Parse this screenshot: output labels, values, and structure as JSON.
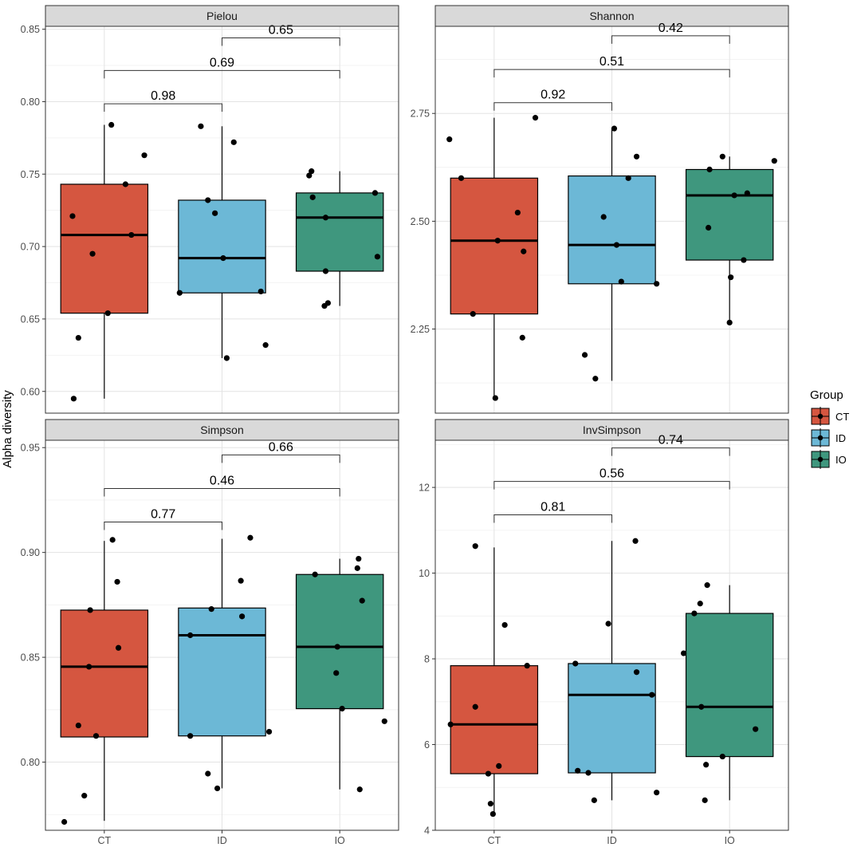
{
  "chart_data": {
    "type": "box",
    "ylabel": "Alpha diversity",
    "xlabel": "",
    "groups": [
      "CT",
      "ID",
      "IO"
    ],
    "colors": {
      "CT": "#d55640",
      "ID": "#6cb8d6",
      "IO": "#3f977e"
    },
    "legend": {
      "title": "Group",
      "position": "right",
      "entries": [
        "CT",
        "ID",
        "IO"
      ]
    },
    "panels": [
      {
        "title": "Pielou",
        "ylim": [
          0.585,
          0.852
        ],
        "yticks": [
          0.6,
          0.65,
          0.7,
          0.75,
          0.8,
          0.85
        ],
        "tick_labels": [
          "0.60",
          "0.65",
          "0.70",
          "0.75",
          "0.80",
          "0.85"
        ],
        "boxes": [
          {
            "group": "CT",
            "whisker_low": 0.595,
            "q1": 0.654,
            "median": 0.708,
            "q3": 0.743,
            "whisker_high": 0.784
          },
          {
            "group": "ID",
            "whisker_low": 0.623,
            "q1": 0.668,
            "median": 0.692,
            "q3": 0.732,
            "whisker_high": 0.783
          },
          {
            "group": "IO",
            "whisker_low": 0.659,
            "q1": 0.683,
            "median": 0.72,
            "q3": 0.737,
            "whisker_high": 0.752
          }
        ],
        "points": [
          {
            "group": "CT",
            "jitter": -0.26,
            "value": 0.595
          },
          {
            "group": "CT",
            "jitter": -0.22,
            "value": 0.637
          },
          {
            "group": "CT",
            "jitter": 0.03,
            "value": 0.654
          },
          {
            "group": "CT",
            "jitter": -0.1,
            "value": 0.695
          },
          {
            "group": "CT",
            "jitter": -0.27,
            "value": 0.721
          },
          {
            "group": "CT",
            "jitter": 0.18,
            "value": 0.743
          },
          {
            "group": "CT",
            "jitter": 0.23,
            "value": 0.708
          },
          {
            "group": "CT",
            "jitter": 0.34,
            "value": 0.763
          },
          {
            "group": "CT",
            "jitter": 0.06,
            "value": 0.784
          },
          {
            "group": "ID",
            "jitter": -0.18,
            "value": 0.783
          },
          {
            "group": "ID",
            "jitter": 0.1,
            "value": 0.772
          },
          {
            "group": "ID",
            "jitter": -0.12,
            "value": 0.732
          },
          {
            "group": "ID",
            "jitter": -0.06,
            "value": 0.723
          },
          {
            "group": "ID",
            "jitter": 0.01,
            "value": 0.692
          },
          {
            "group": "ID",
            "jitter": 0.33,
            "value": 0.669
          },
          {
            "group": "ID",
            "jitter": -0.36,
            "value": 0.668
          },
          {
            "group": "ID",
            "jitter": 0.37,
            "value": 0.632
          },
          {
            "group": "ID",
            "jitter": 0.04,
            "value": 0.623
          },
          {
            "group": "IO",
            "jitter": -0.26,
            "value": 0.749
          },
          {
            "group": "IO",
            "jitter": -0.24,
            "value": 0.752
          },
          {
            "group": "IO",
            "jitter": -0.23,
            "value": 0.734
          },
          {
            "group": "IO",
            "jitter": -0.12,
            "value": 0.72
          },
          {
            "group": "IO",
            "jitter": 0.3,
            "value": 0.737
          },
          {
            "group": "IO",
            "jitter": 0.32,
            "value": 0.693
          },
          {
            "group": "IO",
            "jitter": -0.12,
            "value": 0.683
          },
          {
            "group": "IO",
            "jitter": -0.1,
            "value": 0.661
          },
          {
            "group": "IO",
            "jitter": -0.13,
            "value": 0.659
          }
        ],
        "comparisons": [
          {
            "from": "CT",
            "to": "ID",
            "label": "0.98",
            "y": 0.7985
          },
          {
            "from": "CT",
            "to": "IO",
            "label": "0.69",
            "y": 0.8215
          },
          {
            "from": "ID",
            "to": "IO",
            "label": "0.65",
            "y": 0.844
          }
        ]
      },
      {
        "title": "Shannon",
        "ylim": [
          2.055,
          2.952
        ],
        "yticks": [
          2.25,
          2.5,
          2.75
        ],
        "tick_labels": [
          "2.25",
          "2.50",
          "2.75"
        ],
        "boxes": [
          {
            "group": "CT",
            "whisker_low": 2.09,
            "q1": 2.285,
            "median": 2.455,
            "q3": 2.6,
            "whisker_high": 2.74
          },
          {
            "group": "ID",
            "whisker_low": 2.13,
            "q1": 2.355,
            "median": 2.445,
            "q3": 2.605,
            "whisker_high": 2.715
          },
          {
            "group": "IO",
            "whisker_low": 2.27,
            "q1": 2.41,
            "median": 2.56,
            "q3": 2.62,
            "whisker_high": 2.65
          }
        ],
        "points": [
          {
            "group": "CT",
            "jitter": -0.38,
            "value": 2.69
          },
          {
            "group": "CT",
            "jitter": -0.28,
            "value": 2.6
          },
          {
            "group": "CT",
            "jitter": 0.35,
            "value": 2.74
          },
          {
            "group": "CT",
            "jitter": 0.2,
            "value": 2.52
          },
          {
            "group": "CT",
            "jitter": 0.03,
            "value": 2.455
          },
          {
            "group": "CT",
            "jitter": 0.25,
            "value": 2.43
          },
          {
            "group": "CT",
            "jitter": -0.18,
            "value": 2.285
          },
          {
            "group": "CT",
            "jitter": 0.24,
            "value": 2.23
          },
          {
            "group": "CT",
            "jitter": 0.01,
            "value": 2.09
          },
          {
            "group": "ID",
            "jitter": 0.02,
            "value": 2.715
          },
          {
            "group": "ID",
            "jitter": 0.21,
            "value": 2.65
          },
          {
            "group": "ID",
            "jitter": 0.14,
            "value": 2.6
          },
          {
            "group": "ID",
            "jitter": -0.07,
            "value": 2.51
          },
          {
            "group": "ID",
            "jitter": 0.04,
            "value": 2.445
          },
          {
            "group": "ID",
            "jitter": 0.08,
            "value": 2.36
          },
          {
            "group": "ID",
            "jitter": 0.38,
            "value": 2.355
          },
          {
            "group": "ID",
            "jitter": -0.23,
            "value": 2.19
          },
          {
            "group": "ID",
            "jitter": -0.14,
            "value": 2.135
          },
          {
            "group": "IO",
            "jitter": -0.18,
            "value": 2.485
          },
          {
            "group": "IO",
            "jitter": -0.17,
            "value": 2.62
          },
          {
            "group": "IO",
            "jitter": -0.06,
            "value": 2.65
          },
          {
            "group": "IO",
            "jitter": 0.04,
            "value": 2.56
          },
          {
            "group": "IO",
            "jitter": 0.15,
            "value": 2.565
          },
          {
            "group": "IO",
            "jitter": 0.38,
            "value": 2.64
          },
          {
            "group": "IO",
            "jitter": 0.12,
            "value": 2.41
          },
          {
            "group": "IO",
            "jitter": 0.01,
            "value": 2.37
          },
          {
            "group": "IO",
            "jitter": 0.0,
            "value": 2.265
          }
        ],
        "comparisons": [
          {
            "from": "CT",
            "to": "ID",
            "label": "0.92",
            "y": 2.775
          },
          {
            "from": "CT",
            "to": "IO",
            "label": "0.51",
            "y": 2.852
          },
          {
            "from": "ID",
            "to": "IO",
            "label": "0.42",
            "y": 2.93
          }
        ]
      },
      {
        "title": "Simpson",
        "ylim": [
          0.7675,
          0.9535
        ],
        "yticks": [
          0.8,
          0.85,
          0.9,
          0.95
        ],
        "tick_labels": [
          "0.80",
          "0.85",
          "0.90",
          "0.95"
        ],
        "boxes": [
          {
            "group": "CT",
            "whisker_low": 0.772,
            "q1": 0.812,
            "median": 0.8455,
            "q3": 0.8725,
            "whisker_high": 0.9055
          },
          {
            "group": "ID",
            "whisker_low": 0.7875,
            "q1": 0.8125,
            "median": 0.8605,
            "q3": 0.8735,
            "whisker_high": 0.9065
          },
          {
            "group": "IO",
            "whisker_low": 0.787,
            "q1": 0.8255,
            "median": 0.855,
            "q3": 0.8895,
            "whisker_high": 0.897
          }
        ],
        "points": [
          {
            "group": "CT",
            "jitter": 0.07,
            "value": 0.906
          },
          {
            "group": "CT",
            "jitter": 0.11,
            "value": 0.886
          },
          {
            "group": "CT",
            "jitter": -0.12,
            "value": 0.8725
          },
          {
            "group": "CT",
            "jitter": 0.12,
            "value": 0.8545
          },
          {
            "group": "CT",
            "jitter": -0.13,
            "value": 0.8455
          },
          {
            "group": "CT",
            "jitter": -0.22,
            "value": 0.8175
          },
          {
            "group": "CT",
            "jitter": -0.07,
            "value": 0.8125
          },
          {
            "group": "CT",
            "jitter": -0.17,
            "value": 0.784
          },
          {
            "group": "CT",
            "jitter": -0.34,
            "value": 0.7715
          },
          {
            "group": "ID",
            "jitter": 0.24,
            "value": 0.907
          },
          {
            "group": "ID",
            "jitter": 0.16,
            "value": 0.8865
          },
          {
            "group": "ID",
            "jitter": -0.09,
            "value": 0.873
          },
          {
            "group": "ID",
            "jitter": 0.17,
            "value": 0.8695
          },
          {
            "group": "ID",
            "jitter": -0.27,
            "value": 0.8605
          },
          {
            "group": "ID",
            "jitter": -0.27,
            "value": 0.8125
          },
          {
            "group": "ID",
            "jitter": 0.4,
            "value": 0.8145
          },
          {
            "group": "ID",
            "jitter": -0.12,
            "value": 0.7945
          },
          {
            "group": "ID",
            "jitter": -0.04,
            "value": 0.7875
          },
          {
            "group": "IO",
            "jitter": 0.16,
            "value": 0.897
          },
          {
            "group": "IO",
            "jitter": 0.15,
            "value": 0.8925
          },
          {
            "group": "IO",
            "jitter": -0.21,
            "value": 0.8895
          },
          {
            "group": "IO",
            "jitter": 0.19,
            "value": 0.877
          },
          {
            "group": "IO",
            "jitter": -0.02,
            "value": 0.855
          },
          {
            "group": "IO",
            "jitter": -0.03,
            "value": 0.8425
          },
          {
            "group": "IO",
            "jitter": 0.02,
            "value": 0.8255
          },
          {
            "group": "IO",
            "jitter": 0.38,
            "value": 0.8195
          },
          {
            "group": "IO",
            "jitter": 0.17,
            "value": 0.787
          }
        ],
        "comparisons": [
          {
            "from": "CT",
            "to": "ID",
            "label": "0.77",
            "y": 0.9145
          },
          {
            "from": "CT",
            "to": "IO",
            "label": "0.46",
            "y": 0.9305
          },
          {
            "from": "ID",
            "to": "IO",
            "label": "0.66",
            "y": 0.9465
          }
        ]
      },
      {
        "title": "InvSimpson",
        "ylim": [
          4.0,
          13.1
        ],
        "yticks": [
          4,
          6,
          8,
          10,
          12
        ],
        "tick_labels": [
          "4",
          "6",
          "8",
          "10",
          "12"
        ],
        "boxes": [
          {
            "group": "CT",
            "whisker_low": 4.4,
            "q1": 5.32,
            "median": 6.47,
            "q3": 7.84,
            "whisker_high": 10.6
          },
          {
            "group": "ID",
            "whisker_low": 4.7,
            "q1": 5.34,
            "median": 7.16,
            "q3": 7.89,
            "whisker_high": 10.75
          },
          {
            "group": "IO",
            "whisker_low": 4.7,
            "q1": 5.72,
            "median": 6.88,
            "q3": 9.06,
            "whisker_high": 9.72
          }
        ],
        "points": [
          {
            "group": "CT",
            "jitter": -0.16,
            "value": 10.63
          },
          {
            "group": "CT",
            "jitter": 0.09,
            "value": 8.79
          },
          {
            "group": "CT",
            "jitter": 0.28,
            "value": 7.84
          },
          {
            "group": "CT",
            "jitter": -0.16,
            "value": 6.88
          },
          {
            "group": "CT",
            "jitter": -0.37,
            "value": 6.47
          },
          {
            "group": "CT",
            "jitter": 0.04,
            "value": 5.5
          },
          {
            "group": "CT",
            "jitter": -0.05,
            "value": 5.32
          },
          {
            "group": "CT",
            "jitter": -0.03,
            "value": 4.62
          },
          {
            "group": "CT",
            "jitter": -0.01,
            "value": 4.38
          },
          {
            "group": "ID",
            "jitter": 0.2,
            "value": 10.75
          },
          {
            "group": "ID",
            "jitter": -0.03,
            "value": 8.82
          },
          {
            "group": "ID",
            "jitter": 0.21,
            "value": 7.69
          },
          {
            "group": "ID",
            "jitter": -0.31,
            "value": 7.89
          },
          {
            "group": "ID",
            "jitter": 0.34,
            "value": 7.16
          },
          {
            "group": "ID",
            "jitter": -0.29,
            "value": 5.39
          },
          {
            "group": "ID",
            "jitter": -0.2,
            "value": 5.34
          },
          {
            "group": "ID",
            "jitter": -0.15,
            "value": 4.7
          },
          {
            "group": "ID",
            "jitter": 0.38,
            "value": 4.88
          },
          {
            "group": "IO",
            "jitter": -0.19,
            "value": 9.72
          },
          {
            "group": "IO",
            "jitter": -0.25,
            "value": 9.29
          },
          {
            "group": "IO",
            "jitter": -0.3,
            "value": 9.06
          },
          {
            "group": "IO",
            "jitter": -0.39,
            "value": 8.13
          },
          {
            "group": "IO",
            "jitter": -0.24,
            "value": 6.88
          },
          {
            "group": "IO",
            "jitter": 0.22,
            "value": 6.36
          },
          {
            "group": "IO",
            "jitter": -0.06,
            "value": 5.72
          },
          {
            "group": "IO",
            "jitter": -0.2,
            "value": 5.53
          },
          {
            "group": "IO",
            "jitter": -0.21,
            "value": 4.7
          }
        ],
        "comparisons": [
          {
            "from": "CT",
            "to": "ID",
            "label": "0.81",
            "y": 11.36
          },
          {
            "from": "CT",
            "to": "IO",
            "label": "0.56",
            "y": 12.14
          },
          {
            "from": "ID",
            "to": "IO",
            "label": "0.74",
            "y": 12.92
          }
        ]
      }
    ]
  }
}
